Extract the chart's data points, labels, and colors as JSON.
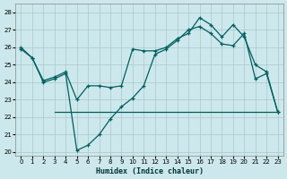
{
  "xlabel": "Humidex (Indice chaleur)",
  "background_color": "#cde8ec",
  "grid_color": "#a8c8cc",
  "line_color": "#005f5f",
  "xlim": [
    -0.5,
    23.5
  ],
  "ylim": [
    19.8,
    28.5
  ],
  "xticks": [
    0,
    1,
    2,
    3,
    4,
    5,
    6,
    7,
    8,
    9,
    10,
    11,
    12,
    13,
    14,
    15,
    16,
    17,
    18,
    19,
    20,
    21,
    22,
    23
  ],
  "yticks": [
    20,
    21,
    22,
    23,
    24,
    25,
    26,
    27,
    28
  ],
  "series1_x": [
    0,
    1,
    2,
    3,
    4,
    5,
    6,
    7,
    8,
    9,
    10,
    11,
    12,
    13,
    14,
    15,
    16,
    17,
    18,
    19,
    20,
    21,
    22,
    23
  ],
  "series1_y": [
    26.0,
    25.4,
    24.0,
    24.2,
    24.5,
    20.1,
    20.4,
    21.0,
    21.9,
    22.6,
    23.1,
    23.8,
    25.6,
    25.9,
    26.4,
    27.0,
    27.2,
    26.8,
    26.2,
    26.1,
    26.8,
    24.2,
    24.5,
    22.3
  ],
  "series2_x": [
    0,
    1,
    2,
    3,
    4,
    5,
    6,
    7,
    8,
    9,
    10,
    11,
    12,
    13,
    14,
    15,
    16,
    17,
    18,
    19,
    20,
    21,
    22,
    23
  ],
  "series2_y": [
    25.9,
    25.4,
    24.1,
    24.3,
    24.6,
    23.0,
    23.8,
    23.8,
    23.7,
    23.8,
    25.9,
    25.8,
    25.8,
    26.0,
    26.5,
    26.8,
    27.7,
    27.3,
    26.6,
    27.3,
    26.6,
    25.0,
    24.6,
    22.3
  ],
  "series3_x": [
    3,
    23
  ],
  "series3_y": [
    22.3,
    22.3
  ]
}
